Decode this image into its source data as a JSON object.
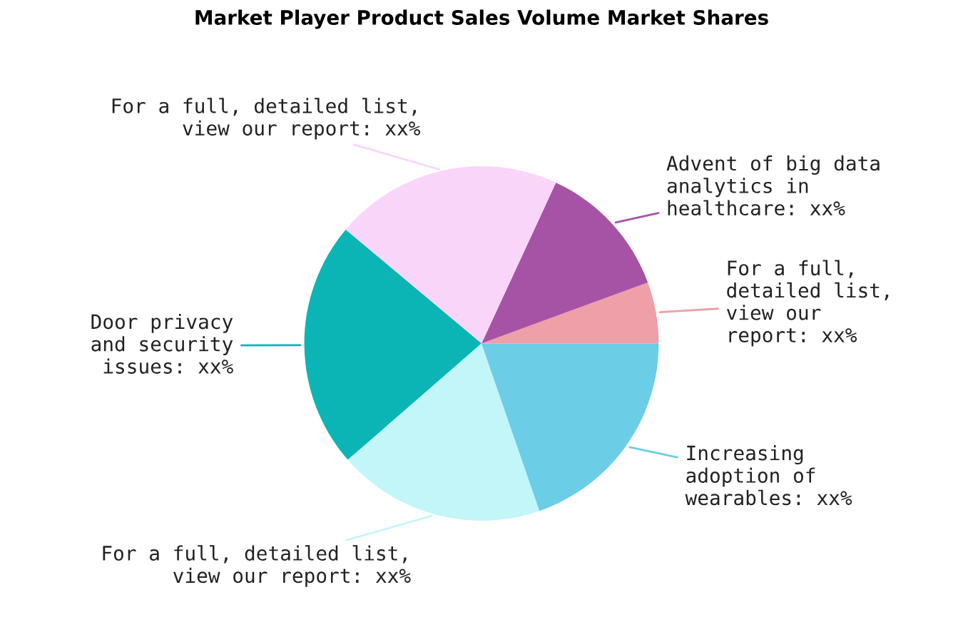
{
  "chart_data": {
    "type": "pie",
    "title": "Market Player Product Sales Volume Market Shares",
    "categories": [
      "For a full,\ndetailed list,\nview our\nreport: xx%",
      "Advent of big data\nanalytics in\nhealthcare: xx%",
      "For a full, detailed list,\nview our report: xx%",
      "Door privacy\nand security\nissues: xx%",
      "For a full, detailed list,\nview our report: xx%",
      "Increasing\nadoption of\nwearables: xx%"
    ],
    "values": [
      5.6,
      12.5,
      20.8,
      22.5,
      18.9,
      19.7
    ],
    "colors": [
      "#ef9fa8",
      "#a653a6",
      "#fad5fa",
      "#0bb5b5",
      "#c2f6f9",
      "#6ccde6"
    ],
    "legend": false
  }
}
